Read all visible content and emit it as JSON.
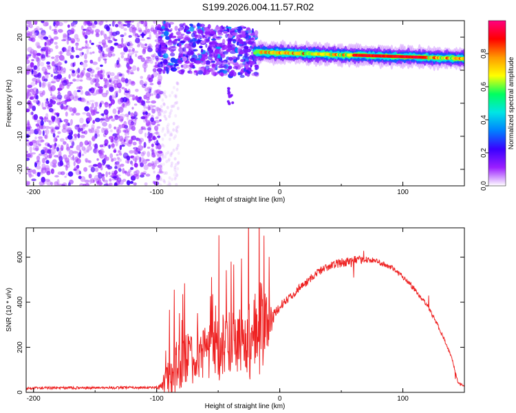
{
  "figure": {
    "title": "S199.2026.004.11.57.R02"
  },
  "chart_data": [
    {
      "type": "heatmap",
      "xlabel": "Height of straight line (km)",
      "ylabel": "Frequency (Hz)",
      "xlim": [
        -206,
        150
      ],
      "ylim": [
        -25,
        25
      ],
      "xticks": [
        -200,
        -100,
        0,
        100
      ],
      "yticks": [
        -20,
        -10,
        0,
        10,
        20
      ],
      "colorbar": {
        "label": "Normalized spectral amplitude",
        "ticks": [
          "0.0",
          "0.2",
          "0.4",
          "0.6",
          "0.8"
        ],
        "range": [
          0,
          1
        ],
        "colors": [
          "#ffffff",
          "#9b1fff",
          "#3a00ff",
          "#0080ff",
          "#00e5e5",
          "#00ff60",
          "#ffff00",
          "#ff9900",
          "#ff0000",
          "#ff0080"
        ]
      },
      "features": {
        "noise_region_x": [
          -206,
          -100
        ],
        "scatter_region_x": [
          -100,
          -18
        ],
        "scatter_freq_range": [
          8,
          23
        ],
        "line_region_x": [
          -20,
          150
        ],
        "line_freq_start": 15.5,
        "line_freq_end": 13.5
      }
    },
    {
      "type": "line",
      "xlabel": "Height of straight line (km)",
      "ylabel": "SNR (10 * v/v)",
      "xlim": [
        -206,
        150
      ],
      "ylim": [
        0,
        730
      ],
      "xticks": [
        -200,
        -100,
        0,
        100
      ],
      "yticks": [
        0,
        200,
        400,
        600
      ],
      "series": [
        {
          "color": "#ee2222",
          "x": [
            -206,
            -180,
            -150,
            -120,
            -100,
            -95,
            -90,
            -85,
            -80,
            -70,
            -60,
            -50,
            -40,
            -30,
            -25,
            -20,
            -15,
            -10,
            -5,
            0,
            5,
            10,
            15,
            20,
            30,
            40,
            50,
            60,
            70,
            80,
            90,
            100,
            110,
            120,
            130,
            140,
            145,
            150
          ],
          "y": [
            18,
            20,
            20,
            21,
            22,
            28,
            45,
            70,
            95,
            120,
            140,
            150,
            160,
            170,
            175,
            200,
            230,
            270,
            330,
            380,
            410,
            430,
            460,
            480,
            530,
            560,
            575,
            585,
            590,
            580,
            555,
            515,
            455,
            385,
            280,
            150,
            40,
            30
          ],
          "noise_amp": [
            12,
            12,
            12,
            12,
            12,
            40,
            90,
            130,
            130,
            140,
            150,
            160,
            170,
            180,
            200,
            220,
            240,
            120,
            70,
            40,
            35,
            35,
            35,
            35,
            35,
            35,
            40,
            40,
            30,
            25,
            25,
            25,
            25,
            20,
            20,
            15,
            10,
            10
          ]
        }
      ]
    }
  ]
}
